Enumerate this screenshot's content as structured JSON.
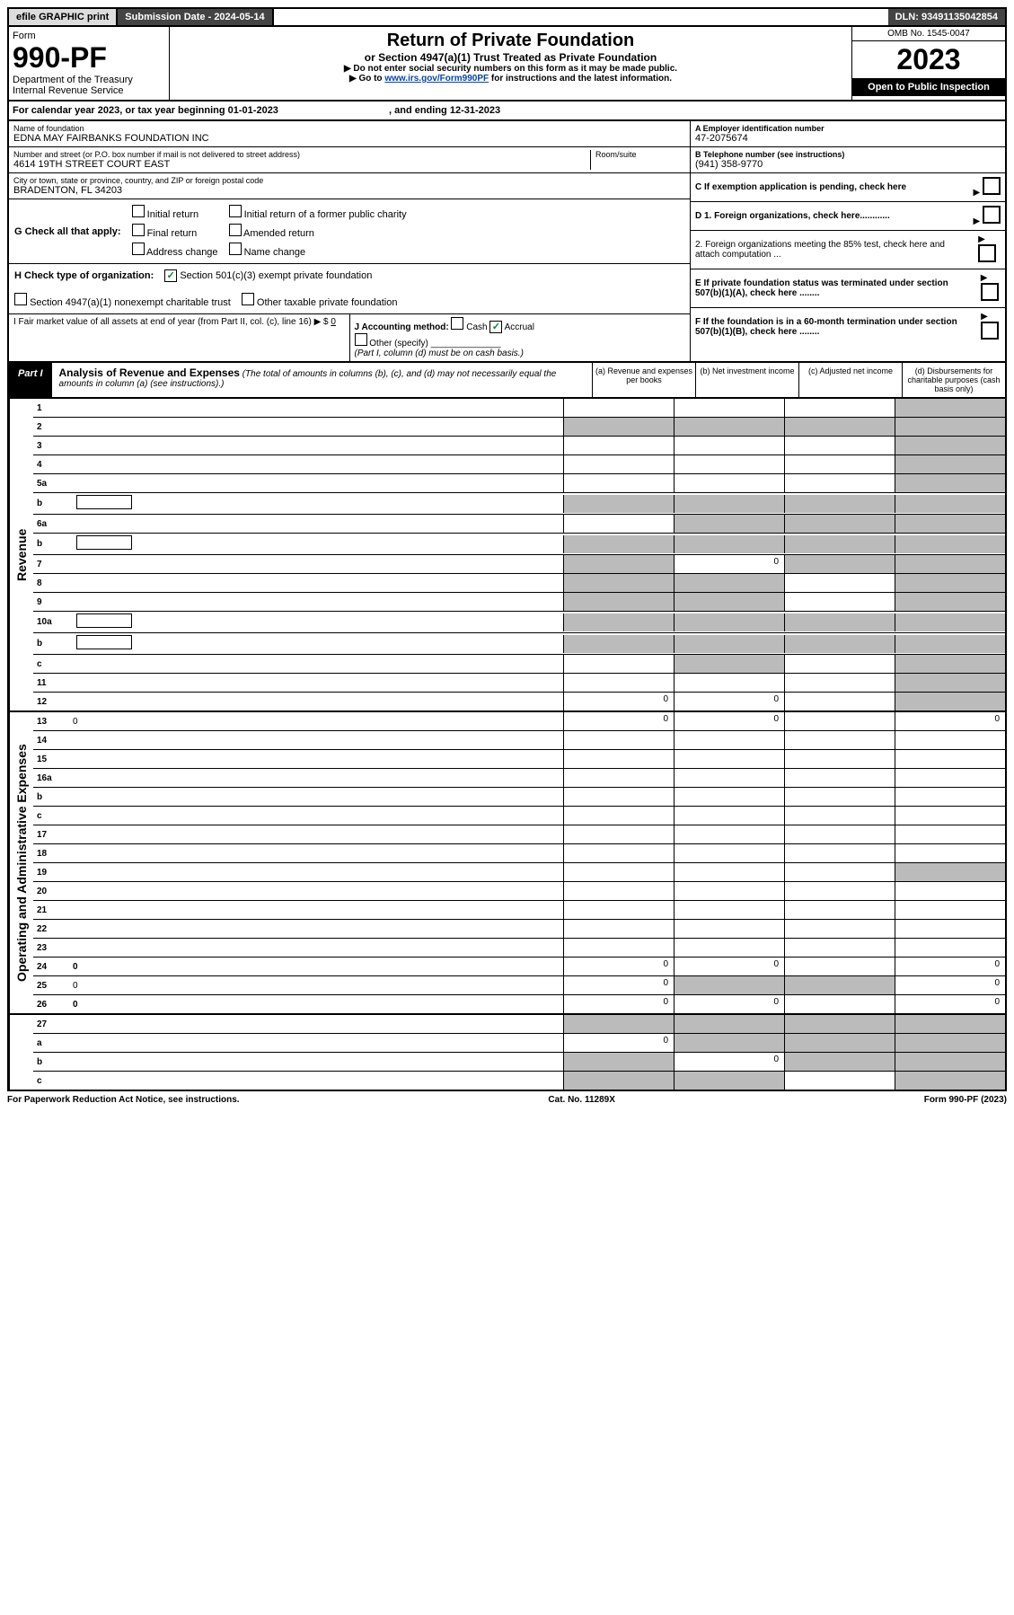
{
  "top": {
    "efile": "efile GRAPHIC print",
    "sub_label": "Submission Date - 2024-05-14",
    "dln": "DLN: 93491135042854"
  },
  "header": {
    "form_label": "Form",
    "form_no": "990-PF",
    "dept": "Department of the Treasury",
    "irs": "Internal Revenue Service",
    "title": "Return of Private Foundation",
    "subtitle": "or Section 4947(a)(1) Trust Treated as Private Foundation",
    "instr1": "▶ Do not enter social security numbers on this form as it may be made public.",
    "instr2_pre": "▶ Go to ",
    "instr2_link": "www.irs.gov/Form990PF",
    "instr2_post": " for instructions and the latest information.",
    "omb": "OMB No. 1545-0047",
    "year": "2023",
    "open": "Open to Public Inspection"
  },
  "cal": {
    "text_pre": "For calendar year 2023, or tax year beginning ",
    "begin": "01-01-2023",
    "mid": " , and ending ",
    "end": "12-31-2023"
  },
  "entity": {
    "name_label": "Name of foundation",
    "name": "EDNA MAY FAIRBANKS FOUNDATION INC",
    "addr_label": "Number and street (or P.O. box number if mail is not delivered to street address)",
    "addr": "4614 19TH STREET COURT EAST",
    "room_label": "Room/suite",
    "city_label": "City or town, state or province, country, and ZIP or foreign postal code",
    "city": "BRADENTON, FL  34203",
    "ein_label": "A Employer identification number",
    "ein": "47-2075674",
    "phone_label": "B Telephone number (see instructions)",
    "phone": "(941) 358-9770",
    "c": "C If exemption application is pending, check here",
    "d1": "D 1. Foreign organizations, check here............",
    "d2": "2. Foreign organizations meeting the 85% test, check here and attach computation ...",
    "e": "E If private foundation status was terminated under section 507(b)(1)(A), check here ........",
    "f": "F If the foundation is in a 60-month termination under section 507(b)(1)(B), check here ........"
  },
  "g": {
    "label": "G Check all that apply:",
    "opts": [
      "Initial return",
      "Final return",
      "Address change",
      "Initial return of a former public charity",
      "Amended return",
      "Name change"
    ]
  },
  "h": {
    "label": "H Check type of organization:",
    "opt1": "Section 501(c)(3) exempt private foundation",
    "opt2": "Section 4947(a)(1) nonexempt charitable trust",
    "opt3": "Other taxable private foundation"
  },
  "i": {
    "label": "I Fair market value of all assets at end of year (from Part II, col. (c), line 16) ▶ $",
    "val": "0"
  },
  "j": {
    "label": "J Accounting method:",
    "cash": "Cash",
    "accrual": "Accrual",
    "other": "Other (specify)",
    "note": "(Part I, column (d) must be on cash basis.)"
  },
  "part1": {
    "tag": "Part I",
    "title": "Analysis of Revenue and Expenses",
    "note": " (The total of amounts in columns (b), (c), and (d) may not necessarily equal the amounts in column (a) (see instructions).)",
    "cols": {
      "a": "(a) Revenue and expenses per books",
      "b": "(b) Net investment income",
      "c": "(c) Adjusted net income",
      "d": "(d) Disbursements for charitable purposes (cash basis only)"
    }
  },
  "side": {
    "rev": "Revenue",
    "exp": "Operating and Administrative Expenses"
  },
  "rows_rev": [
    {
      "n": "1",
      "d": "",
      "a": "",
      "b": "",
      "c": "",
      "shade": [
        "d"
      ]
    },
    {
      "n": "2",
      "d": "",
      "a": "",
      "b": "",
      "c": "",
      "shade": [
        "a",
        "b",
        "c",
        "d"
      ],
      "nocells": true
    },
    {
      "n": "3",
      "d": "",
      "a": "",
      "b": "",
      "c": "",
      "shade": [
        "d"
      ]
    },
    {
      "n": "4",
      "d": "",
      "a": "",
      "b": "",
      "c": "",
      "shade": [
        "d"
      ]
    },
    {
      "n": "5a",
      "d": "",
      "a": "",
      "b": "",
      "c": "",
      "shade": [
        "d"
      ]
    },
    {
      "n": "b",
      "d": "",
      "a": "",
      "b": "",
      "c": "",
      "shade": [
        "a",
        "b",
        "c",
        "d"
      ],
      "subbox": true
    },
    {
      "n": "6a",
      "d": "",
      "a": "",
      "b": "",
      "c": "",
      "shade": [
        "b",
        "c",
        "d"
      ]
    },
    {
      "n": "b",
      "d": "",
      "a": "",
      "b": "",
      "c": "",
      "shade": [
        "a",
        "b",
        "c",
        "d"
      ],
      "subbox": true
    },
    {
      "n": "7",
      "d": "",
      "a": "",
      "b": "0",
      "c": "",
      "shade": [
        "a",
        "c",
        "d"
      ]
    },
    {
      "n": "8",
      "d": "",
      "a": "",
      "b": "",
      "c": "",
      "shade": [
        "a",
        "b",
        "d"
      ]
    },
    {
      "n": "9",
      "d": "",
      "a": "",
      "b": "",
      "c": "",
      "shade": [
        "a",
        "b",
        "d"
      ]
    },
    {
      "n": "10a",
      "d": "",
      "a": "",
      "b": "",
      "c": "",
      "shade": [
        "a",
        "b",
        "c",
        "d"
      ],
      "subbox": true
    },
    {
      "n": "b",
      "d": "",
      "a": "",
      "b": "",
      "c": "",
      "shade": [
        "a",
        "b",
        "c",
        "d"
      ],
      "subbox": true
    },
    {
      "n": "c",
      "d": "",
      "a": "",
      "b": "",
      "c": "",
      "shade": [
        "b",
        "d"
      ]
    },
    {
      "n": "11",
      "d": "",
      "a": "",
      "b": "",
      "c": "",
      "shade": [
        "d"
      ]
    },
    {
      "n": "12",
      "d": "",
      "a": "0",
      "b": "0",
      "c": "",
      "shade": [
        "d"
      ],
      "bold": true
    }
  ],
  "rows_exp": [
    {
      "n": "13",
      "d": "0",
      "a": "0",
      "b": "0",
      "c": ""
    },
    {
      "n": "14",
      "d": "",
      "a": "",
      "b": "",
      "c": ""
    },
    {
      "n": "15",
      "d": "",
      "a": "",
      "b": "",
      "c": ""
    },
    {
      "n": "16a",
      "d": "",
      "a": "",
      "b": "",
      "c": ""
    },
    {
      "n": "b",
      "d": "",
      "a": "",
      "b": "",
      "c": ""
    },
    {
      "n": "c",
      "d": "",
      "a": "",
      "b": "",
      "c": ""
    },
    {
      "n": "17",
      "d": "",
      "a": "",
      "b": "",
      "c": ""
    },
    {
      "n": "18",
      "d": "",
      "a": "",
      "b": "",
      "c": ""
    },
    {
      "n": "19",
      "d": "",
      "a": "",
      "b": "",
      "c": "",
      "shade": [
        "d"
      ]
    },
    {
      "n": "20",
      "d": "",
      "a": "",
      "b": "",
      "c": ""
    },
    {
      "n": "21",
      "d": "",
      "a": "",
      "b": "",
      "c": ""
    },
    {
      "n": "22",
      "d": "",
      "a": "",
      "b": "",
      "c": ""
    },
    {
      "n": "23",
      "d": "",
      "a": "",
      "b": "",
      "c": ""
    },
    {
      "n": "24",
      "d": "0",
      "a": "0",
      "b": "0",
      "c": "",
      "bold": true
    },
    {
      "n": "25",
      "d": "0",
      "a": "0",
      "b": "",
      "c": "",
      "shade": [
        "b",
        "c"
      ]
    },
    {
      "n": "26",
      "d": "0",
      "a": "0",
      "b": "0",
      "c": "",
      "bold": true
    }
  ],
  "rows_net": [
    {
      "n": "27",
      "d": "",
      "a": "",
      "b": "",
      "c": "",
      "shade": [
        "a",
        "b",
        "c",
        "d"
      ]
    },
    {
      "n": "a",
      "d": "",
      "a": "0",
      "b": "",
      "c": "",
      "shade": [
        "b",
        "c",
        "d"
      ],
      "bold": true
    },
    {
      "n": "b",
      "d": "",
      "a": "",
      "b": "0",
      "c": "",
      "shade": [
        "a",
        "c",
        "d"
      ],
      "bold": true
    },
    {
      "n": "c",
      "d": "",
      "a": "",
      "b": "",
      "c": "",
      "shade": [
        "a",
        "b",
        "d"
      ],
      "bold": true
    }
  ],
  "footer": {
    "left": "For Paperwork Reduction Act Notice, see instructions.",
    "mid": "Cat. No. 11289X",
    "right": "Form 990-PF (2023)"
  }
}
